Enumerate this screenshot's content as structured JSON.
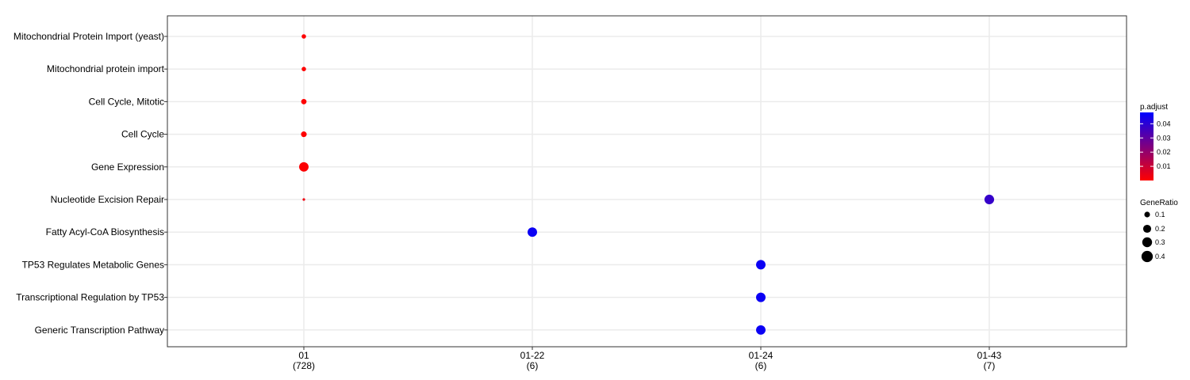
{
  "chart_data": {
    "type": "scatter",
    "title": "",
    "xlabel": "",
    "ylabel": "",
    "grid": true,
    "x_categories": [
      {
        "label": "01",
        "count": "(728)"
      },
      {
        "label": "01-22",
        "count": "(6)"
      },
      {
        "label": "01-24",
        "count": "(6)"
      },
      {
        "label": "01-43",
        "count": "(7)"
      }
    ],
    "y_categories": [
      "Mitochondrial Protein Import (yeast)",
      "Mitochondrial protein import",
      "Cell Cycle, Mitotic",
      "Cell Cycle",
      "Gene Expression",
      "Nucleotide Excision Repair",
      "Fatty Acyl-CoA Biosynthesis",
      "TP53 Regulates Metabolic Genes",
      "Transcriptional Regulation by TP53",
      "Generic Transcription Pathway"
    ],
    "points": [
      {
        "x": "01",
        "y": "Mitochondrial Protein Import (yeast)",
        "gene_ratio": 0.06,
        "p_adjust": 0.0001
      },
      {
        "x": "01",
        "y": "Mitochondrial protein import",
        "gene_ratio": 0.06,
        "p_adjust": 0.0001
      },
      {
        "x": "01",
        "y": "Cell Cycle, Mitotic",
        "gene_ratio": 0.09,
        "p_adjust": 0.0001
      },
      {
        "x": "01",
        "y": "Cell Cycle",
        "gene_ratio": 0.1,
        "p_adjust": 0.0001
      },
      {
        "x": "01",
        "y": "Gene Expression",
        "gene_ratio": 0.28,
        "p_adjust": 0.0005
      },
      {
        "x": "01",
        "y": "Nucleotide Excision Repair",
        "gene_ratio": 0.02,
        "p_adjust": 0.003
      },
      {
        "x": "01-43",
        "y": "Nucleotide Excision Repair",
        "gene_ratio": 0.29,
        "p_adjust": 0.038
      },
      {
        "x": "01-22",
        "y": "Fatty Acyl-CoA Biosynthesis",
        "gene_ratio": 0.28,
        "p_adjust": 0.046
      },
      {
        "x": "01-24",
        "y": "TP53 Regulates Metabolic Genes",
        "gene_ratio": 0.28,
        "p_adjust": 0.046
      },
      {
        "x": "01-24",
        "y": "Transcriptional Regulation by TP53",
        "gene_ratio": 0.28,
        "p_adjust": 0.046
      },
      {
        "x": "01-24",
        "y": "Generic Transcription Pathway",
        "gene_ratio": 0.28,
        "p_adjust": 0.046
      }
    ],
    "color_legend": {
      "title": "p.adjust",
      "ticks": [
        0.04,
        0.03,
        0.02,
        0.01
      ],
      "low_color": "#ff0000",
      "high_color": "#0000ff",
      "range": [
        0.0,
        0.048
      ]
    },
    "size_legend": {
      "title": "GeneRatio",
      "ticks": [
        0.1,
        0.2,
        0.3,
        0.4
      ],
      "color": "#000000"
    },
    "colors": {
      "panel_border": "#333333",
      "grid": "#ebebeb"
    }
  }
}
